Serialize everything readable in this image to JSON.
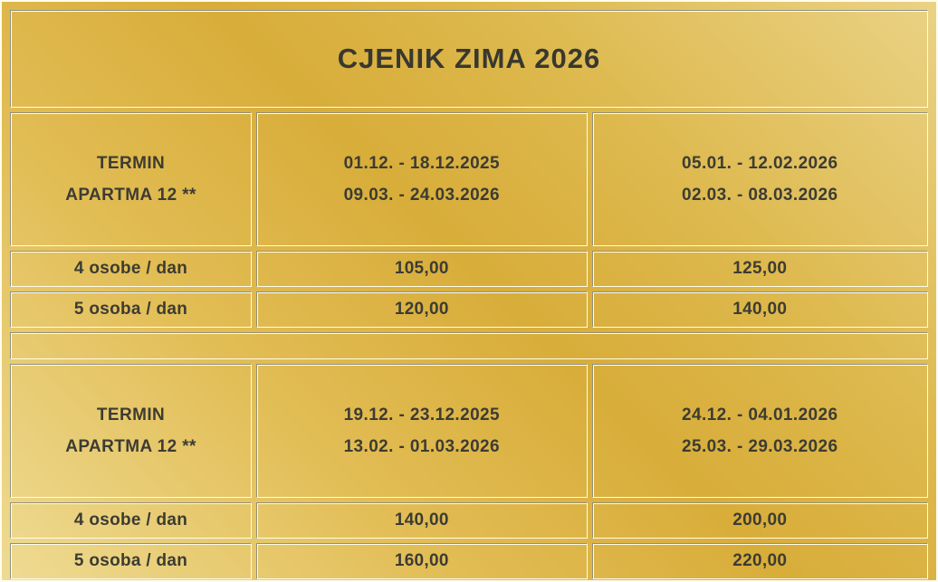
{
  "title": "CJENIK ZIMA 2026",
  "colors": {
    "gold_dark": "#d8ad3a",
    "gold_light": "#eedb93",
    "border_shadow": "#8e9080",
    "border_highlight": "#fffdeb",
    "text": "#3c3c33"
  },
  "tables": [
    {
      "header": {
        "col1": [
          "TERMIN",
          "APARTMA 12 **"
        ],
        "col2": [
          "01.12. - 18.12.2025",
          "09.03. - 24.03.2026"
        ],
        "col3": [
          "05.01. - 12.02.2026",
          "02.03. - 08.03.2026"
        ]
      },
      "rows": [
        {
          "label": "4 osobe / dan",
          "col2": "105,00",
          "col3": "125,00"
        },
        {
          "label": "5 osoba / dan",
          "col2": "120,00",
          "col3": "140,00"
        }
      ]
    },
    {
      "header": {
        "col1": [
          "TERMIN",
          "APARTMA 12 **"
        ],
        "col2": [
          "19.12. - 23.12.2025",
          "13.02. - 01.03.2026"
        ],
        "col3": [
          "24.12. - 04.01.2026",
          "25.03. - 29.03.2026"
        ]
      },
      "rows": [
        {
          "label": "4 osobe / dan",
          "col2": "140,00",
          "col3": "200,00"
        },
        {
          "label": "5 osoba / dan",
          "col2": "160,00",
          "col3": "220,00"
        }
      ]
    }
  ]
}
